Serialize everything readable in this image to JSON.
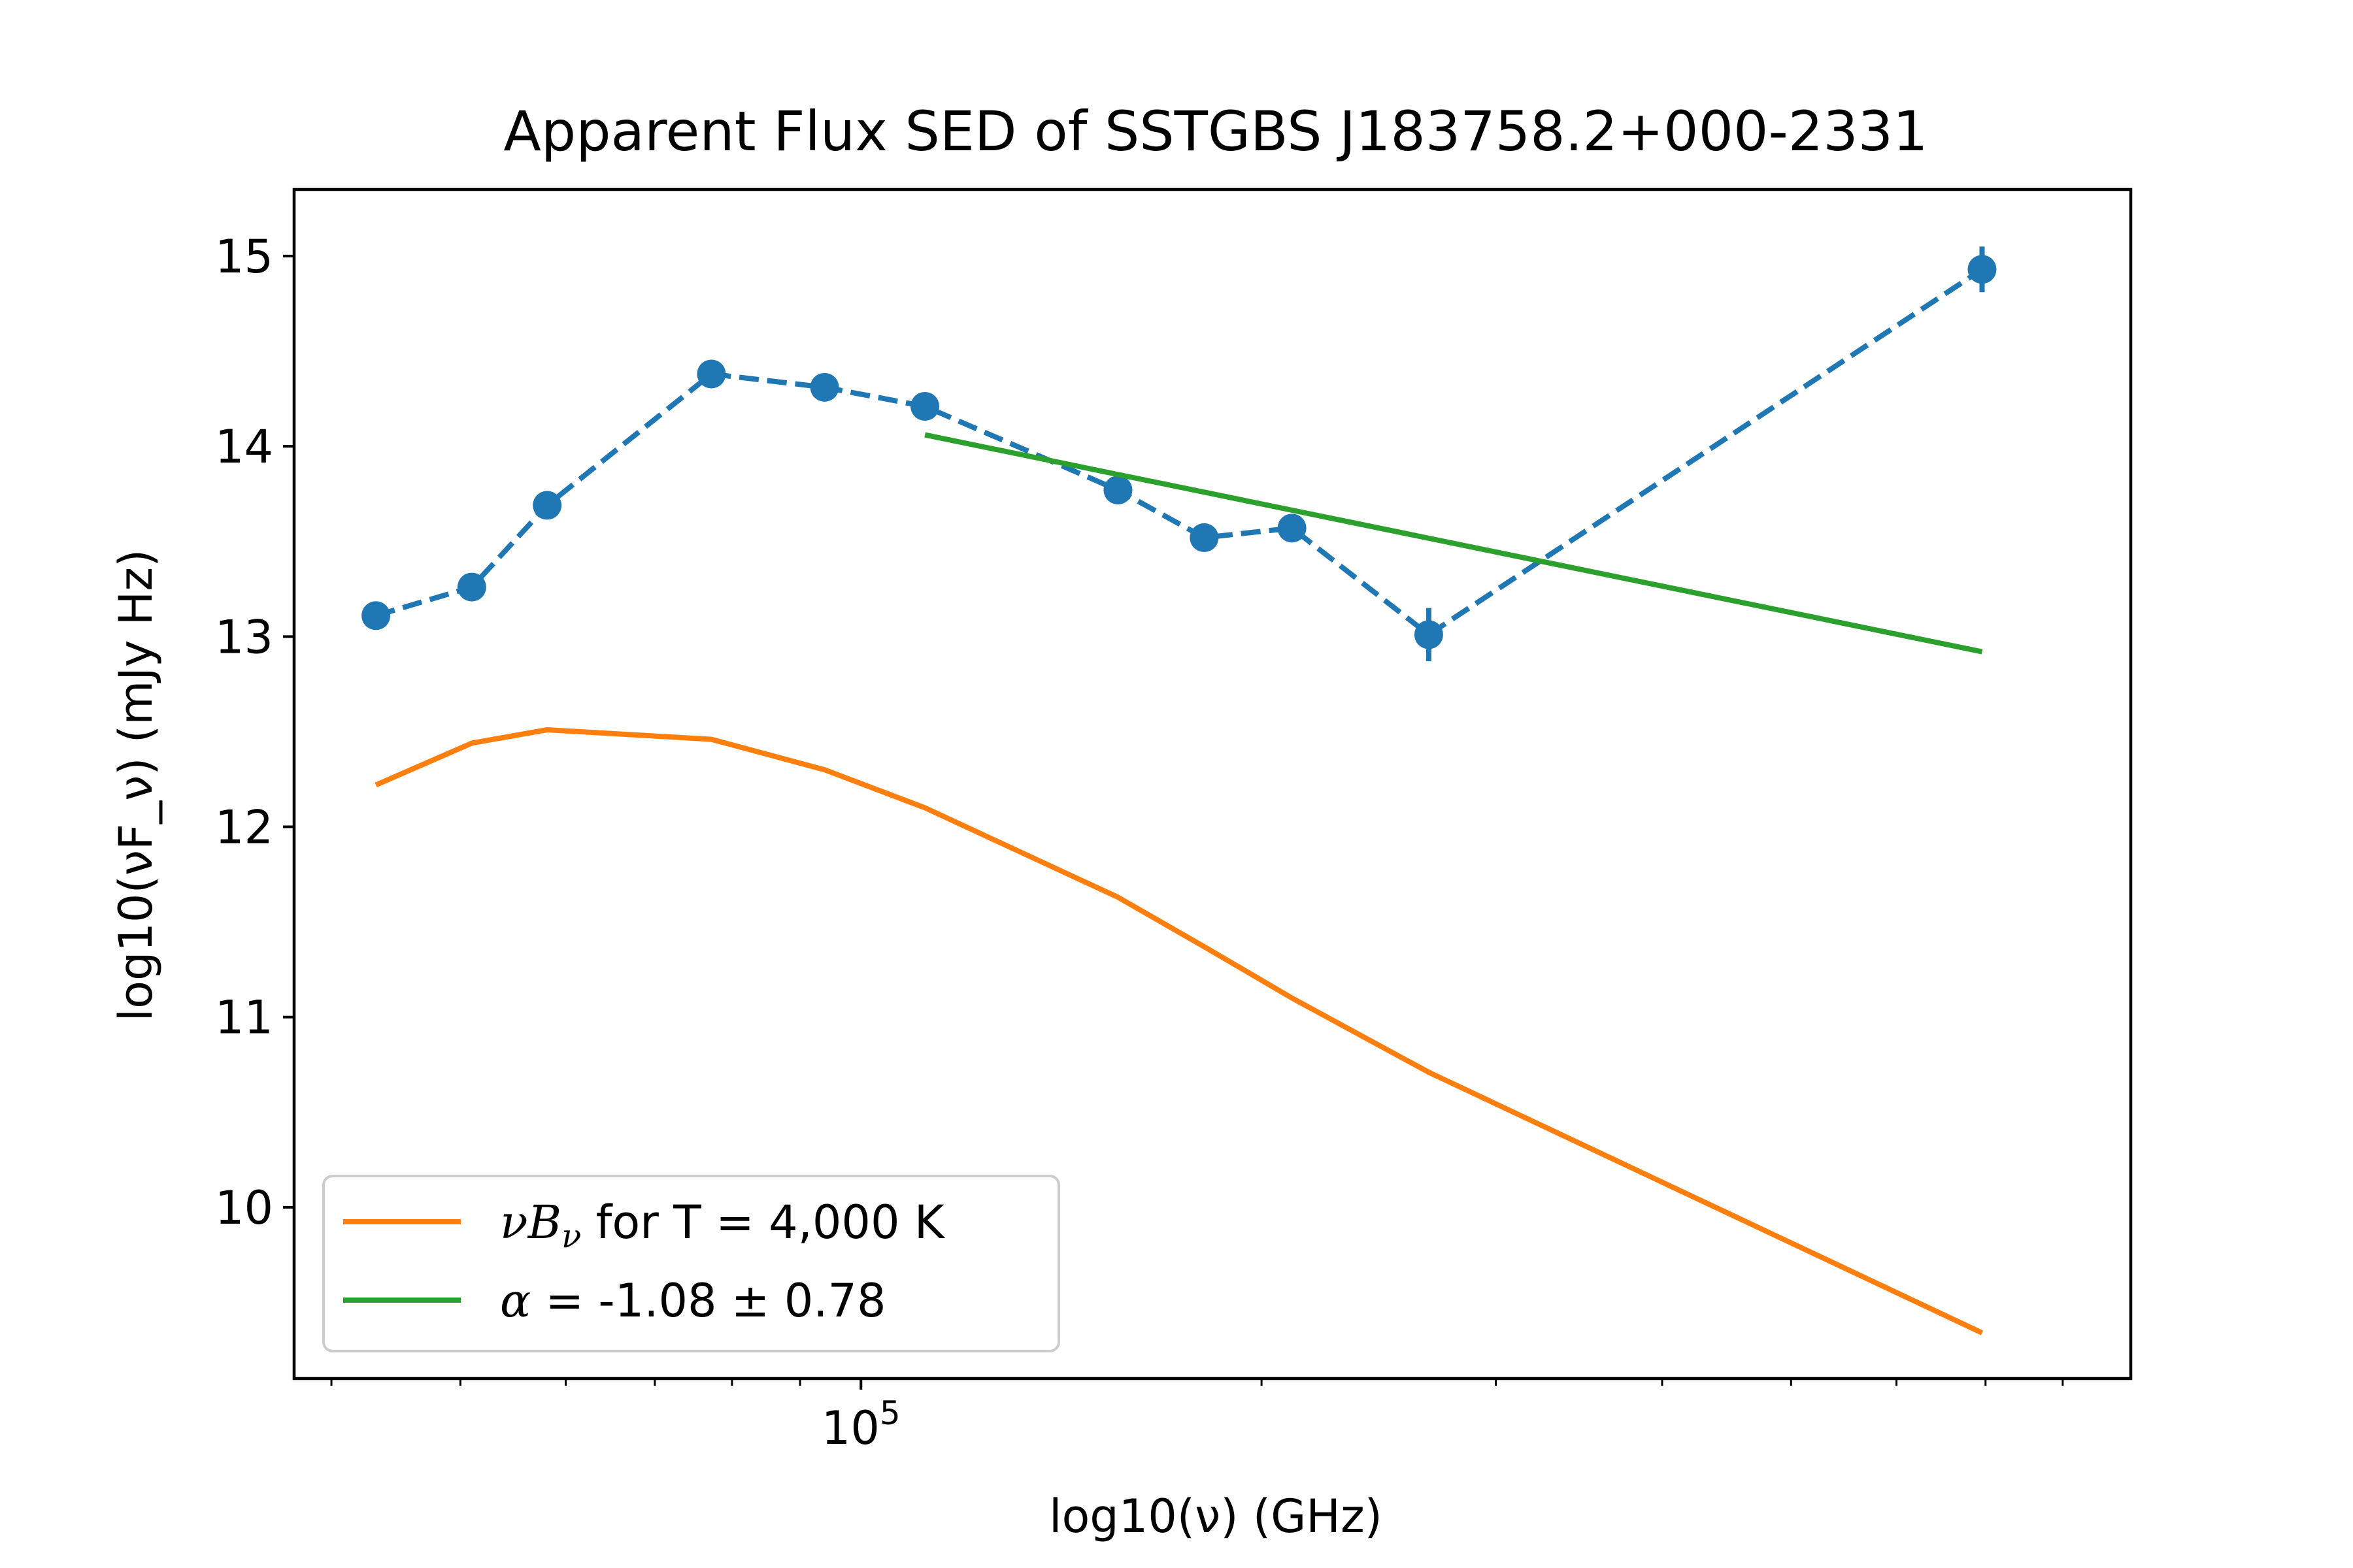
{
  "chart_data": {
    "type": "line",
    "title": "Apparent Flux SED of SSTGBS J183758.2+000-2331",
    "xlabel": "log10(ν) (GHz)",
    "ylabel": "log10(νF_ν) (mJy Hz)",
    "xscale": "log",
    "ylim": [
      9.1,
      15.35
    ],
    "x_ticks": [
      {
        "value": 100000,
        "base": "10",
        "exp": "5"
      }
    ],
    "y_ticks": [
      "10",
      "11",
      "12",
      "13",
      "14",
      "15"
    ],
    "y_tick_values": [
      10,
      11,
      12,
      13,
      14,
      15
    ],
    "grid": false,
    "legend_position": "lower-left",
    "series": [
      {
        "key": "observed",
        "style": "dashed-markers",
        "color": "#1f77b4",
        "x": [
          43200,
          51000,
          58100,
          77200,
          93900,
          111700,
          156000,
          181100,
          210800,
          267100,
          695800
        ],
        "y": [
          13.11,
          13.26,
          13.69,
          14.38,
          14.31,
          14.21,
          13.77,
          13.52,
          13.57,
          13.01,
          14.93
        ],
        "yerr": [
          0.06,
          0.06,
          0.06,
          0.06,
          0.06,
          0.06,
          0.06,
          0.06,
          0.06,
          0.14,
          0.12
        ]
      },
      {
        "key": "blackbody",
        "name": "νB_ν for T = 4,000 K",
        "legend_main": "B",
        "legend_sub": "ν",
        "legend_rest": " for T = 4,000 K",
        "style": "solid",
        "color": "#ff7f0e",
        "x": [
          43200,
          51000,
          58100,
          77200,
          93900,
          111700,
          156000,
          181100,
          210800,
          267100,
          695800
        ],
        "y": [
          12.22,
          12.44,
          12.51,
          12.46,
          12.3,
          12.1,
          11.63,
          11.37,
          11.1,
          10.71,
          9.34
        ]
      },
      {
        "key": "fit",
        "name": "α = -1.08 ± 0.78",
        "legend_rest": " = -1.08 ± 0.78",
        "style": "solid",
        "color": "#2ca02c",
        "x": [
          111700,
          695800
        ],
        "y": [
          14.06,
          12.92
        ]
      }
    ]
  }
}
